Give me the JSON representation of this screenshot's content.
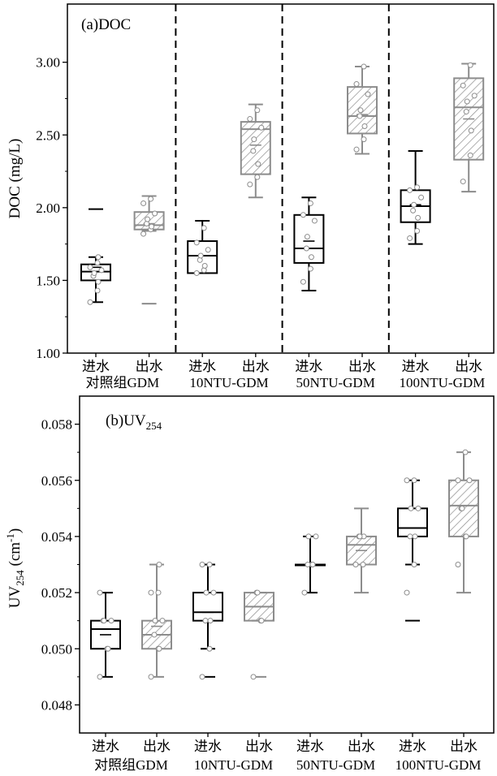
{
  "chart_data": [
    {
      "type": "box",
      "panel_label": "(a)DOC",
      "ylabel": "DOC (mg/L)",
      "ylim": [
        1.0,
        3.4
      ],
      "yticks": [
        "1.00",
        "1.50",
        "2.00",
        "2.50",
        "3.00"
      ],
      "categories": [
        "进水",
        "出水",
        "进水",
        "出水",
        "进水",
        "出水",
        "进水",
        "出水"
      ],
      "groups": [
        "对照组GDM",
        "10NTU-GDM",
        "50NTU-GDM",
        "100NTU-GDM"
      ],
      "boxes": [
        {
          "min": 1.35,
          "q1": 1.5,
          "median": 1.56,
          "mean": 1.59,
          "q3": 1.61,
          "max": 1.66,
          "outliers": [
            1.99
          ],
          "points": [
            1.35,
            1.43,
            1.49,
            1.53,
            1.55,
            1.57,
            1.59,
            1.62,
            1.66
          ]
        },
        {
          "min": 1.84,
          "q1": 1.85,
          "median": 1.88,
          "mean": 1.89,
          "q3": 1.97,
          "max": 2.08,
          "outliers": [
            1.34
          ],
          "points": [
            1.82,
            1.85,
            1.87,
            1.89,
            1.92,
            1.96,
            2.03,
            2.06
          ]
        },
        {
          "min": 1.55,
          "q1": 1.55,
          "median": 1.67,
          "mean": 1.67,
          "q3": 1.77,
          "max": 1.91,
          "outliers": [],
          "points": [
            1.55,
            1.57,
            1.6,
            1.64,
            1.67,
            1.71,
            1.76,
            1.86
          ]
        },
        {
          "min": 2.07,
          "q1": 2.23,
          "median": 2.54,
          "mean": 2.43,
          "q3": 2.59,
          "max": 2.71,
          "outliers": [],
          "points": [
            2.16,
            2.21,
            2.3,
            2.39,
            2.47,
            2.55,
            2.61,
            2.67
          ]
        },
        {
          "min": 1.43,
          "q1": 1.62,
          "median": 1.72,
          "mean": 1.77,
          "q3": 1.95,
          "max": 2.07,
          "outliers": [],
          "points": [
            1.49,
            1.58,
            1.66,
            1.72,
            1.8,
            1.91,
            1.95,
            2.03
          ]
        },
        {
          "min": 2.37,
          "q1": 2.51,
          "median": 2.63,
          "mean": 2.64,
          "q3": 2.83,
          "max": 2.97,
          "outliers": [],
          "points": [
            2.4,
            2.47,
            2.56,
            2.63,
            2.67,
            2.78,
            2.85,
            2.97
          ]
        },
        {
          "min": 1.75,
          "q1": 1.9,
          "median": 2.01,
          "mean": 2.02,
          "q3": 2.12,
          "max": 2.39,
          "outliers": [],
          "points": [
            1.79,
            1.84,
            1.93,
            1.98,
            2.02,
            2.07,
            2.12,
            2.14
          ]
        },
        {
          "min": 2.11,
          "q1": 2.33,
          "median": 2.69,
          "mean": 2.61,
          "q3": 2.89,
          "max": 2.99,
          "outliers": [],
          "points": [
            2.18,
            2.36,
            2.53,
            2.66,
            2.73,
            2.77,
            2.84,
            2.98
          ]
        }
      ]
    },
    {
      "type": "box",
      "panel_label": "(b)UV254",
      "panel_label_main": "(b)UV",
      "panel_label_sub": "254",
      "ylabel": "UV254 (cm-1)",
      "ylabel_main": "UV",
      "ylabel_sub": "254",
      "ylabel_unit": " (cm",
      "ylabel_sup": "-1",
      "ylabel_close": ")",
      "ylim": [
        0.047,
        0.059
      ],
      "yticks": [
        "0.048",
        "0.050",
        "0.052",
        "0.054",
        "0.056",
        "0.058"
      ],
      "categories": [
        "进水",
        "出水",
        "进水",
        "出水",
        "进水",
        "出水",
        "进水",
        "出水"
      ],
      "groups": [
        "对照组GDM",
        "10NTU-GDM",
        "50NTU-GDM",
        "100NTU-GDM"
      ],
      "boxes": [
        {
          "min": 0.049,
          "q1": 0.05,
          "median": 0.0507,
          "mean": 0.0505,
          "q3": 0.051,
          "max": 0.052,
          "outliers": [],
          "points": [
            0.049,
            0.05,
            0.05,
            0.051,
            0.051,
            0.051,
            0.052
          ]
        },
        {
          "min": 0.049,
          "q1": 0.05,
          "median": 0.0505,
          "mean": 0.0508,
          "q3": 0.051,
          "max": 0.053,
          "outliers": [],
          "points": [
            0.049,
            0.05,
            0.05,
            0.0505,
            0.051,
            0.051,
            0.052,
            0.052,
            0.053
          ]
        },
        {
          "min": 0.05,
          "q1": 0.051,
          "median": 0.0513,
          "mean": 0.0513,
          "q3": 0.052,
          "max": 0.053,
          "outliers": [
            0.049
          ],
          "points": [
            0.049,
            0.05,
            0.051,
            0.051,
            0.052,
            0.052,
            0.053,
            0.053
          ]
        },
        {
          "min": 0.051,
          "q1": 0.051,
          "median": 0.0515,
          "mean": 0.0515,
          "q3": 0.052,
          "max": 0.052,
          "outliers": [
            0.049
          ],
          "points": [
            0.049,
            0.051,
            0.051,
            0.052,
            0.052
          ]
        },
        {
          "min": 0.052,
          "q1": 0.053,
          "median": 0.053,
          "mean": 0.053,
          "q3": 0.053,
          "max": 0.054,
          "outliers": [],
          "points": [
            0.052,
            0.053,
            0.053,
            0.053,
            0.054,
            0.054
          ]
        },
        {
          "min": 0.052,
          "q1": 0.053,
          "median": 0.0537,
          "mean": 0.0535,
          "q3": 0.054,
          "max": 0.055,
          "outliers": [],
          "points": [
            0.053,
            0.053,
            0.054,
            0.054,
            0.054
          ]
        },
        {
          "min": 0.053,
          "q1": 0.054,
          "median": 0.0543,
          "mean": 0.0543,
          "q3": 0.055,
          "max": 0.056,
          "outliers": [
            0.051
          ],
          "points": [
            0.052,
            0.053,
            0.054,
            0.054,
            0.055,
            0.055,
            0.056,
            0.056
          ]
        },
        {
          "min": 0.052,
          "q1": 0.054,
          "median": 0.0551,
          "mean": 0.0551,
          "q3": 0.056,
          "max": 0.057,
          "outliers": [],
          "points": [
            0.053,
            0.054,
            0.054,
            0.055,
            0.055,
            0.056,
            0.056,
            0.057
          ]
        }
      ]
    }
  ],
  "colors": {
    "influent": "#000000",
    "effluent": "#8c8c8c",
    "effluent_hatch": "#8c8c8c",
    "point_fill": "#ffffff",
    "point_stroke": "#8c8c8c"
  }
}
